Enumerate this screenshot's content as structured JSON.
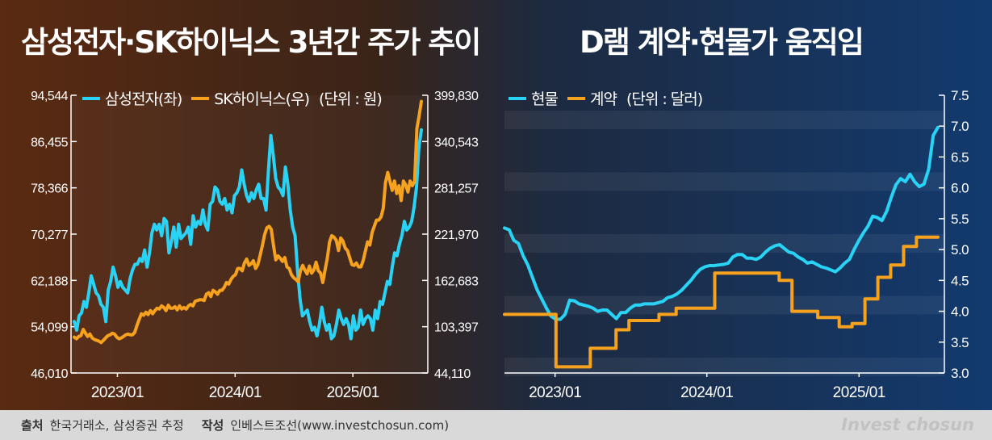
{
  "titles": {
    "left": "삼성전자·SK하이닉스 3년간 주가 추이",
    "right": "D램 계약·현물가 움직임"
  },
  "colors": {
    "cyan": "#29d3f6",
    "orange": "#f6a21e",
    "white": "#ffffff"
  },
  "footer": {
    "source_label": "출처",
    "source_text": "한국거래소, 삼성증권 추정",
    "author_label": "작성",
    "author_text": "인베스트조선(www.investchosun.com)",
    "brand": "Invest chosun"
  },
  "chart_data": [
    {
      "type": "line",
      "legend": [
        {
          "name": "삼성전자(좌)",
          "color": "#29d3f6"
        },
        {
          "name": "SK하이닉스(우)",
          "color": "#f6a21e"
        }
      ],
      "unit_note": "(단위 : 원)",
      "left_axis_ticks": [
        "94,544",
        "86,455",
        "78,366",
        "70,277",
        "62,188",
        "54,099",
        "46,010"
      ],
      "right_axis_ticks": [
        "399,830",
        "340,543",
        "281,257",
        "221,970",
        "162,683",
        "103,397",
        "44,110"
      ],
      "ylim_left": [
        46010,
        94544
      ],
      "ylim_right": [
        44110,
        399830
      ],
      "x_tick_labels": [
        "2023/01",
        "2024/01",
        "2025/01"
      ],
      "x_tick_positions": [
        0.13,
        0.46,
        0.79
      ],
      "series": [
        {
          "name": "삼성전자(좌)",
          "axis": "left",
          "color": "#29d3f6",
          "values": [
            55000,
            53500,
            56000,
            56500,
            58500,
            57500,
            60000,
            63000,
            61500,
            60000,
            59500,
            58000,
            57500,
            55000,
            60500,
            62000,
            64500,
            63000,
            61000,
            62000,
            61000,
            60500,
            60000,
            62500,
            64000,
            65000,
            65000,
            66000,
            65500,
            67500,
            64500,
            67000,
            70500,
            72000,
            71000,
            72000,
            70000,
            73000,
            72500,
            67000,
            69000,
            71500,
            68000,
            72000,
            69500,
            70000,
            70500,
            71500,
            68500,
            73500,
            71500,
            72500,
            72000,
            74500,
            72000,
            71000,
            75500,
            76000,
            78500,
            78000,
            76000,
            75500,
            76500,
            74500,
            75500,
            74000,
            77000,
            77500,
            78500,
            81500,
            79000,
            77000,
            76000,
            77500,
            76500,
            78000,
            79000,
            76500,
            76500,
            74500,
            81500,
            87500,
            84000,
            80000,
            78500,
            78000,
            77000,
            82000,
            79000,
            74500,
            71500,
            70000,
            64000,
            59000,
            56000,
            56500,
            57000,
            55000,
            53500,
            54000,
            52500,
            54500,
            57500,
            55000,
            53500,
            54500,
            52000,
            52500,
            54500,
            57000,
            55500,
            54500,
            55500,
            54500,
            52000,
            56000,
            53500,
            54000,
            57000,
            54500,
            55500,
            56000,
            55500,
            53500,
            57000,
            55500,
            58500,
            58000,
            60000,
            62000,
            61500,
            64500,
            67000,
            66500,
            68500,
            70000,
            72500,
            71000,
            71500,
            72500,
            75000,
            78500,
            85500,
            88500
          ]
        },
        {
          "name": "SK하이닉스(우)",
          "axis": "right",
          "color": "#f6a21e",
          "values": [
            90000,
            88000,
            91000,
            92000,
            100000,
            95000,
            91000,
            94000,
            89000,
            87000,
            86000,
            85000,
            83000,
            86000,
            89000,
            92000,
            93000,
            95000,
            94000,
            90000,
            88000,
            89000,
            91000,
            93000,
            94000,
            93000,
            93000,
            96000,
            105000,
            113000,
            120000,
            118000,
            122000,
            119000,
            124000,
            120000,
            124000,
            127000,
            126000,
            130000,
            128000,
            124000,
            131000,
            127000,
            127000,
            129000,
            125000,
            130000,
            126000,
            128000,
            126000,
            130000,
            132000,
            130000,
            136000,
            137000,
            138000,
            138000,
            137000,
            145000,
            147000,
            142000,
            150000,
            148000,
            145000,
            150000,
            150000,
            154000,
            160000,
            158000,
            164000,
            168000,
            170000,
            178000,
            178000,
            175000,
            185000,
            190000,
            182000,
            184000,
            188000,
            178000,
            183000,
            195000,
            207000,
            221000,
            230000,
            232000,
            228000,
            207000,
            189000,
            194000,
            191000,
            187000,
            192000,
            180000,
            178000,
            170000,
            166000,
            164000,
            161000,
            175000,
            182000,
            176000,
            171000,
            181000,
            172000,
            176000,
            186000,
            175000,
            172000,
            160000,
            176000,
            191000,
            212000,
            220000,
            218000,
            214000,
            201000,
            217000,
            213000,
            204000,
            201000,
            192000,
            183000,
            182000,
            185000,
            180000,
            180000,
            188000,
            200000,
            212000,
            208000,
            224000,
            232000,
            240000,
            240000,
            244000,
            255000,
            288000,
            301000,
            289000,
            278000,
            290000,
            274000,
            284000,
            265000,
            290000,
            285000,
            276000,
            290000,
            284000,
            290000,
            357000,
            373000,
            392000
          ]
        }
      ]
    },
    {
      "type": "line",
      "legend": [
        {
          "name": "현물",
          "color": "#29d3f6"
        },
        {
          "name": "계약",
          "color": "#f6a21e"
        }
      ],
      "unit_note": "(단위 : 달러)",
      "y_axis_ticks": [
        "7.5",
        "7.0",
        "6.5",
        "6.0",
        "5.5",
        "5.0",
        "4.5",
        "4.0",
        "3.5",
        "3.0"
      ],
      "ylim": [
        3.0,
        7.5
      ],
      "x_tick_labels": [
        "2023/01",
        "2024/01",
        "2025/01"
      ],
      "x_tick_positions": [
        0.115,
        0.46,
        0.806
      ],
      "series": [
        {
          "name": "현물",
          "color": "#29d3f6",
          "values": [
            5.35,
            5.32,
            5.15,
            5.1,
            4.9,
            4.75,
            4.55,
            4.35,
            4.2,
            4.05,
            3.92,
            3.87,
            3.87,
            3.95,
            4.18,
            4.17,
            4.12,
            4.1,
            4.08,
            4.05,
            4.0,
            4.02,
            4.02,
            3.95,
            3.88,
            3.98,
            3.98,
            4.05,
            4.1,
            4.1,
            4.12,
            4.12,
            4.12,
            4.14,
            4.16,
            4.22,
            4.24,
            4.28,
            4.34,
            4.42,
            4.5,
            4.6,
            4.68,
            4.72,
            4.74,
            4.74,
            4.75,
            4.76,
            4.78,
            4.88,
            4.92,
            4.92,
            4.86,
            4.86,
            4.84,
            4.88,
            4.96,
            5.02,
            5.06,
            5.08,
            5.02,
            4.96,
            4.94,
            4.88,
            4.84,
            4.78,
            4.8,
            4.76,
            4.72,
            4.7,
            4.67,
            4.64,
            4.7,
            4.78,
            4.84,
            5.0,
            5.14,
            5.27,
            5.38,
            5.54,
            5.52,
            5.47,
            5.62,
            5.85,
            6.05,
            6.15,
            6.1,
            6.22,
            6.1,
            6.02,
            6.06,
            6.3,
            6.85,
            6.98
          ]
        },
        {
          "name": "계약",
          "color": "#f6a21e",
          "values": [
            3.95,
            3.95,
            3.95,
            3.95,
            3.95,
            3.95,
            3.95,
            3.95,
            3.95,
            3.95,
            3.95,
            3.95,
            3.1,
            3.1,
            3.1,
            3.1,
            3.1,
            3.1,
            3.1,
            3.1,
            3.4,
            3.4,
            3.4,
            3.4,
            3.4,
            3.4,
            3.7,
            3.7,
            3.7,
            3.85,
            3.85,
            3.85,
            3.85,
            3.85,
            3.85,
            3.85,
            3.95,
            3.95,
            3.95,
            3.95,
            4.05,
            4.05,
            4.05,
            4.05,
            4.05,
            4.05,
            4.05,
            4.05,
            4.05,
            4.62,
            4.62,
            4.62,
            4.62,
            4.62,
            4.62,
            4.62,
            4.62,
            4.62,
            4.62,
            4.62,
            4.62,
            4.62,
            4.62,
            4.62,
            4.5,
            4.5,
            4.5,
            4.0,
            4.0,
            4.0,
            4.0,
            4.0,
            4.0,
            3.9,
            3.9,
            3.9,
            3.9,
            3.9,
            3.75,
            3.75,
            3.75,
            3.8,
            3.8,
            3.8,
            4.2,
            4.2,
            4.2,
            4.55,
            4.55,
            4.55,
            4.75,
            4.75,
            4.75,
            5.05,
            5.05,
            5.05,
            5.2,
            5.2,
            5.2,
            5.2,
            5.2,
            5.2
          ]
        }
      ]
    }
  ]
}
